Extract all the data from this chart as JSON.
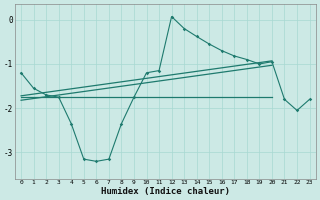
{
  "xlabel": "Humidex (Indice chaleur)",
  "background_color": "#cce9e5",
  "line_color": "#1e7a6e",
  "xlim": [
    -0.5,
    23.5
  ],
  "ylim": [
    -3.6,
    0.35
  ],
  "yticks": [
    0,
    -1,
    -2,
    -3
  ],
  "xticks": [
    0,
    1,
    2,
    3,
    4,
    5,
    6,
    7,
    8,
    9,
    10,
    11,
    12,
    13,
    14,
    15,
    16,
    17,
    18,
    19,
    20,
    21,
    22,
    23
  ],
  "curve_x": [
    0,
    1,
    2,
    3,
    4,
    5,
    6,
    7,
    8,
    9,
    10,
    11,
    12,
    13,
    14,
    15,
    16,
    17,
    18,
    19,
    20,
    21,
    22,
    23
  ],
  "curve_y": [
    -1.2,
    -1.55,
    -1.7,
    -1.75,
    -2.35,
    -3.15,
    -3.2,
    -3.15,
    -2.35,
    -1.75,
    -1.2,
    -1.15,
    0.07,
    -0.2,
    -0.38,
    -0.55,
    -0.7,
    -0.82,
    -0.9,
    -1.0,
    -0.95,
    -1.8,
    -2.05,
    -1.8
  ],
  "line1_x": [
    0,
    20
  ],
  "line1_y": [
    -1.72,
    -0.93
  ],
  "line2_x": [
    0,
    20
  ],
  "line2_y": [
    -1.82,
    -1.03
  ],
  "line3_x": [
    0,
    20
  ],
  "line3_y": [
    -1.75,
    -1.75
  ],
  "grid_color": "#a8d8d2",
  "spine_color": "#888888"
}
